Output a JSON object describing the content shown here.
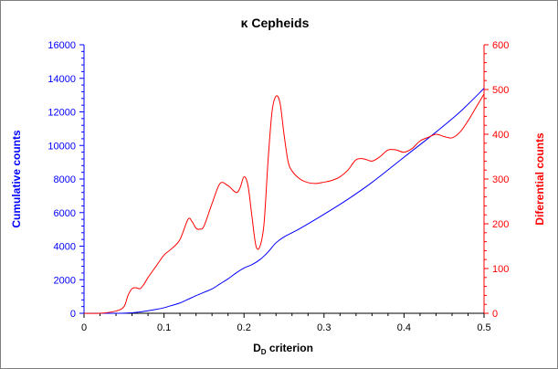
{
  "chart_data": {
    "type": "line",
    "title": "κ Cepheids",
    "xlabel_main": "D",
    "xlabel_sub": "D",
    "xlabel_rest": " criterion",
    "ylabel_left": "Cumulative counts",
    "ylabel_right": "Diferential counts",
    "xlim": [
      0,
      0.5
    ],
    "ylim_left": [
      0,
      16000
    ],
    "ylim_right": [
      0,
      600
    ],
    "x_ticks": [
      "0",
      "0.1",
      "0.2",
      "0.3",
      "0.4",
      "0.5"
    ],
    "y_left_ticks": [
      "0",
      "2000",
      "4000",
      "6000",
      "8000",
      "10000",
      "12000",
      "14000",
      "16000"
    ],
    "y_right_ticks": [
      "0",
      "100",
      "200",
      "300",
      "400",
      "500",
      "600"
    ],
    "grid": false,
    "legend": "none",
    "colors": {
      "cumulative": "#0000ff",
      "differential": "#ff0000",
      "axis": "#000000"
    },
    "series": [
      {
        "axis": "left",
        "color": "#0000ff",
        "x": [
          0,
          0.02,
          0.04,
          0.06,
          0.07,
          0.08,
          0.09,
          0.1,
          0.11,
          0.12,
          0.13,
          0.14,
          0.15,
          0.16,
          0.17,
          0.18,
          0.19,
          0.2,
          0.21,
          0.22,
          0.23,
          0.24,
          0.25,
          0.27,
          0.3,
          0.33,
          0.36,
          0.4,
          0.44,
          0.47,
          0.5
        ],
        "y": [
          0,
          0,
          0,
          30,
          80,
          150,
          230,
          330,
          470,
          620,
          830,
          1050,
          1250,
          1450,
          1750,
          2050,
          2400,
          2700,
          2900,
          3200,
          3650,
          4200,
          4550,
          5050,
          5900,
          6800,
          7800,
          9300,
          10800,
          12000,
          13400
        ]
      },
      {
        "axis": "right",
        "color": "#ff0000",
        "x": [
          0,
          0.02,
          0.04,
          0.05,
          0.055,
          0.06,
          0.065,
          0.07,
          0.075,
          0.08,
          0.09,
          0.1,
          0.11,
          0.12,
          0.13,
          0.135,
          0.14,
          0.145,
          0.15,
          0.16,
          0.17,
          0.18,
          0.19,
          0.195,
          0.2,
          0.205,
          0.21,
          0.215,
          0.22,
          0.225,
          0.23,
          0.235,
          0.24,
          0.245,
          0.25,
          0.255,
          0.26,
          0.27,
          0.28,
          0.29,
          0.3,
          0.31,
          0.32,
          0.33,
          0.34,
          0.35,
          0.36,
          0.37,
          0.38,
          0.39,
          0.4,
          0.41,
          0.42,
          0.43,
          0.44,
          0.45,
          0.46,
          0.47,
          0.48,
          0.49,
          0.5
        ],
        "y": [
          0,
          0,
          5,
          15,
          40,
          55,
          57,
          55,
          65,
          80,
          105,
          130,
          145,
          165,
          210,
          205,
          190,
          188,
          195,
          245,
          290,
          285,
          270,
          280,
          305,
          285,
          215,
          150,
          150,
          200,
          340,
          450,
          485,
          470,
          400,
          340,
          318,
          300,
          292,
          290,
          293,
          297,
          305,
          320,
          343,
          345,
          340,
          350,
          365,
          365,
          360,
          368,
          385,
          393,
          400,
          395,
          392,
          405,
          430,
          460,
          490
        ]
      }
    ]
  }
}
